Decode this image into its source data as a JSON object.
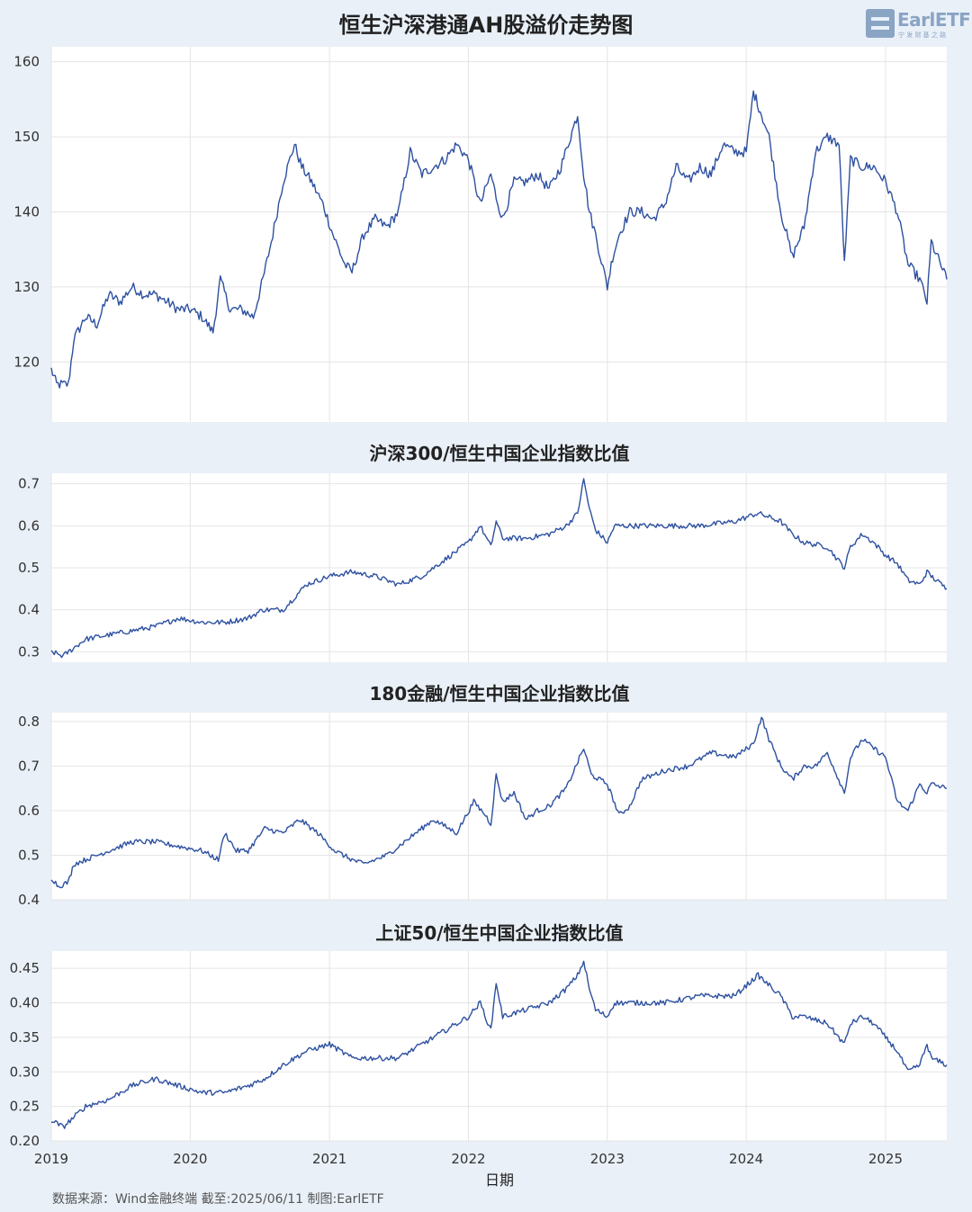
{
  "title": "恒生沪深港通AH股溢价走势图",
  "logo": {
    "text": "EarlETF",
    "sub": "宁 发 财 基 之 路"
  },
  "xlabel": "日期",
  "source": "数据来源：Wind金融终端 截至:2025/06/11 制图:EarlETF",
  "x_ticks": [
    "2019",
    "2020",
    "2021",
    "2022",
    "2023",
    "2024",
    "2025"
  ],
  "colors": {
    "line": "#2d50a0",
    "plot_bg": "#ffffff",
    "page_bg": "#e9f0f8",
    "grid": "#e4e4e4"
  },
  "chart_data": [
    {
      "type": "line",
      "title": "恒生沪深港通AH股溢价走势图",
      "xlabel": "",
      "ylabel": "",
      "ylim": [
        112,
        162
      ],
      "yticks": [
        "120",
        "130",
        "140",
        "150",
        "160"
      ],
      "ytick_values": [
        120,
        130,
        140,
        150,
        160
      ],
      "x": [
        "2019-01-01",
        "2019-01-15",
        "2019-02-15",
        "2019-03-01",
        "2019-04-01",
        "2019-05-01",
        "2019-06-01",
        "2019-07-01",
        "2019-08-01",
        "2019-09-01",
        "2019-10-01",
        "2019-11-01",
        "2019-12-01",
        "2020-01-01",
        "2020-02-01",
        "2020-03-01",
        "2020-03-20",
        "2020-04-15",
        "2020-05-15",
        "2020-06-15",
        "2020-07-10",
        "2020-08-01",
        "2020-09-01",
        "2020-10-01",
        "2020-10-20",
        "2020-11-15",
        "2020-12-15",
        "2021-01-10",
        "2021-02-10",
        "2021-03-01",
        "2021-04-01",
        "2021-05-01",
        "2021-06-01",
        "2021-07-01",
        "2021-08-01",
        "2021-09-01",
        "2021-10-01",
        "2021-11-01",
        "2021-12-01",
        "2022-01-01",
        "2022-02-01",
        "2022-03-01",
        "2022-03-15",
        "2022-04-01",
        "2022-05-01",
        "2022-06-01",
        "2022-07-01",
        "2022-08-01",
        "2022-09-01",
        "2022-10-15",
        "2022-10-31",
        "2022-11-15",
        "2022-12-01",
        "2023-01-01",
        "2023-01-15",
        "2023-02-01",
        "2023-03-01",
        "2023-04-01",
        "2023-05-01",
        "2023-06-01",
        "2023-07-01",
        "2023-08-01",
        "2023-09-01",
        "2023-10-01",
        "2023-11-01",
        "2023-12-01",
        "2024-01-01",
        "2024-01-20",
        "2024-02-10",
        "2024-03-01",
        "2024-04-01",
        "2024-05-01",
        "2024-06-01",
        "2024-07-01",
        "2024-08-01",
        "2024-09-01",
        "2024-09-15",
        "2024-10-01",
        "2024-11-01",
        "2024-12-01",
        "2025-01-01",
        "2025-02-01",
        "2025-03-01",
        "2025-04-01",
        "2025-04-20",
        "2025-05-01",
        "2025-06-11"
      ],
      "values": [
        119,
        117,
        117,
        123,
        126,
        125,
        129,
        128,
        130,
        129,
        129,
        128,
        127,
        127,
        126,
        124,
        131,
        127,
        127,
        126,
        131,
        136,
        144,
        149,
        146,
        144,
        141,
        137,
        133,
        132,
        137,
        139,
        138,
        140,
        148,
        145,
        146,
        147,
        149,
        147,
        141,
        145,
        142,
        139,
        144,
        144,
        145,
        143,
        146,
        153,
        145,
        140,
        137,
        130,
        134,
        137,
        140,
        140,
        139,
        141,
        146,
        144,
        146,
        145,
        149,
        148,
        148,
        156,
        153,
        150,
        140,
        134,
        138,
        148,
        150,
        149,
        133,
        147,
        146,
        146,
        144,
        140,
        133,
        131,
        128,
        136,
        131
      ]
    },
    {
      "type": "line",
      "title": "沪深300/恒生中国企业指数比值",
      "xlabel": "",
      "ylabel": "",
      "ylim": [
        0.275,
        0.725
      ],
      "yticks": [
        "0.3",
        "0.4",
        "0.5",
        "0.6",
        "0.7"
      ],
      "ytick_values": [
        0.3,
        0.4,
        0.5,
        0.6,
        0.7
      ],
      "x": [
        "2019-01-01",
        "2019-02-01",
        "2019-04-01",
        "2019-06-01",
        "2019-08-01",
        "2019-10-01",
        "2019-12-01",
        "2020-02-01",
        "2020-04-01",
        "2020-06-01",
        "2020-07-10",
        "2020-09-01",
        "2020-11-01",
        "2021-01-01",
        "2021-03-01",
        "2021-05-01",
        "2021-07-01",
        "2021-09-01",
        "2021-11-01",
        "2022-01-01",
        "2022-02-01",
        "2022-03-01",
        "2022-03-15",
        "2022-04-01",
        "2022-06-01",
        "2022-08-01",
        "2022-09-15",
        "2022-10-15",
        "2022-10-31",
        "2022-11-15",
        "2022-12-01",
        "2023-01-01",
        "2023-01-20",
        "2023-03-01",
        "2023-06-01",
        "2023-09-01",
        "2023-12-01",
        "2024-02-01",
        "2024-04-01",
        "2024-05-01",
        "2024-06-01",
        "2024-08-01",
        "2024-09-15",
        "2024-10-01",
        "2024-11-01",
        "2024-12-01",
        "2025-01-01",
        "2025-02-01",
        "2025-03-01",
        "2025-04-01",
        "2025-04-20",
        "2025-05-01",
        "2025-06-11"
      ],
      "values": [
        0.3,
        0.29,
        0.33,
        0.34,
        0.35,
        0.36,
        0.38,
        0.37,
        0.37,
        0.38,
        0.4,
        0.4,
        0.46,
        0.48,
        0.49,
        0.48,
        0.46,
        0.48,
        0.52,
        0.56,
        0.6,
        0.55,
        0.61,
        0.57,
        0.57,
        0.58,
        0.6,
        0.63,
        0.71,
        0.64,
        0.59,
        0.56,
        0.6,
        0.6,
        0.6,
        0.6,
        0.61,
        0.63,
        0.61,
        0.58,
        0.56,
        0.55,
        0.5,
        0.55,
        0.58,
        0.56,
        0.53,
        0.51,
        0.47,
        0.46,
        0.49,
        0.48,
        0.45
      ]
    },
    {
      "type": "line",
      "title": "180金融/恒生中国企业指数比值",
      "xlabel": "",
      "ylabel": "",
      "ylim": [
        0.4,
        0.82
      ],
      "yticks": [
        "0.4",
        "0.5",
        "0.6",
        "0.7",
        "0.8"
      ],
      "ytick_values": [
        0.4,
        0.5,
        0.6,
        0.7,
        0.8
      ],
      "x": [
        "2019-01-01",
        "2019-01-20",
        "2019-02-15",
        "2019-03-01",
        "2019-04-01",
        "2019-06-01",
        "2019-08-01",
        "2019-10-01",
        "2019-12-01",
        "2020-02-01",
        "2020-03-15",
        "2020-04-01",
        "2020-05-01",
        "2020-06-01",
        "2020-07-15",
        "2020-09-01",
        "2020-10-15",
        "2020-12-01",
        "2021-01-15",
        "2021-03-01",
        "2021-04-01",
        "2021-06-01",
        "2021-08-01",
        "2021-10-01",
        "2021-12-01",
        "2022-01-15",
        "2022-02-15",
        "2022-03-01",
        "2022-03-15",
        "2022-04-01",
        "2022-05-01",
        "2022-06-01",
        "2022-07-01",
        "2022-08-01",
        "2022-09-15",
        "2022-10-31",
        "2022-11-20",
        "2023-01-01",
        "2023-02-01",
        "2023-03-01",
        "2023-04-01",
        "2023-06-01",
        "2023-08-01",
        "2023-10-01",
        "2023-12-01",
        "2024-01-20",
        "2024-02-10",
        "2024-03-01",
        "2024-04-01",
        "2024-05-01",
        "2024-06-01",
        "2024-07-01",
        "2024-08-01",
        "2024-09-15",
        "2024-10-01",
        "2024-11-01",
        "2024-12-01",
        "2025-01-01",
        "2025-02-01",
        "2025-03-01",
        "2025-04-01",
        "2025-04-20",
        "2025-05-01",
        "2025-06-11"
      ],
      "values": [
        0.45,
        0.43,
        0.44,
        0.48,
        0.49,
        0.51,
        0.53,
        0.53,
        0.52,
        0.51,
        0.49,
        0.55,
        0.51,
        0.51,
        0.56,
        0.55,
        0.58,
        0.55,
        0.51,
        0.49,
        0.48,
        0.5,
        0.54,
        0.58,
        0.55,
        0.62,
        0.59,
        0.57,
        0.68,
        0.62,
        0.64,
        0.58,
        0.6,
        0.61,
        0.65,
        0.74,
        0.68,
        0.66,
        0.59,
        0.61,
        0.67,
        0.69,
        0.7,
        0.73,
        0.72,
        0.75,
        0.81,
        0.76,
        0.7,
        0.67,
        0.7,
        0.7,
        0.73,
        0.64,
        0.72,
        0.76,
        0.74,
        0.72,
        0.62,
        0.6,
        0.66,
        0.64,
        0.66,
        0.65
      ]
    },
    {
      "type": "line",
      "title": "上证50/恒生中国企业指数比值",
      "xlabel": "日期",
      "ylabel": "",
      "ylim": [
        0.2,
        0.475
      ],
      "yticks": [
        "0.20",
        "0.25",
        "0.30",
        "0.35",
        "0.40",
        "0.45"
      ],
      "ytick_values": [
        0.2,
        0.25,
        0.3,
        0.35,
        0.4,
        0.45
      ],
      "x": [
        "2019-01-01",
        "2019-02-01",
        "2019-04-01",
        "2019-06-01",
        "2019-08-01",
        "2019-10-01",
        "2019-12-01",
        "2020-02-01",
        "2020-04-01",
        "2020-06-01",
        "2020-07-15",
        "2020-09-01",
        "2020-11-01",
        "2021-01-01",
        "2021-03-01",
        "2021-05-01",
        "2021-07-01",
        "2021-09-01",
        "2021-11-01",
        "2022-01-01",
        "2022-02-01",
        "2022-03-01",
        "2022-03-15",
        "2022-04-01",
        "2022-06-01",
        "2022-08-01",
        "2022-09-15",
        "2022-10-15",
        "2022-10-31",
        "2022-11-15",
        "2022-12-01",
        "2023-01-01",
        "2023-01-20",
        "2023-03-01",
        "2023-06-01",
        "2023-09-01",
        "2023-12-01",
        "2024-02-01",
        "2024-04-01",
        "2024-05-01",
        "2024-06-01",
        "2024-08-01",
        "2024-09-15",
        "2024-10-01",
        "2024-11-01",
        "2024-12-01",
        "2025-01-01",
        "2025-02-01",
        "2025-03-01",
        "2025-04-01",
        "2025-04-20",
        "2025-05-01",
        "2025-06-11"
      ],
      "values": [
        0.23,
        0.22,
        0.25,
        0.26,
        0.28,
        0.29,
        0.28,
        0.27,
        0.27,
        0.28,
        0.29,
        0.31,
        0.33,
        0.34,
        0.32,
        0.32,
        0.32,
        0.34,
        0.36,
        0.38,
        0.4,
        0.36,
        0.43,
        0.38,
        0.39,
        0.4,
        0.42,
        0.44,
        0.46,
        0.42,
        0.39,
        0.38,
        0.4,
        0.4,
        0.4,
        0.41,
        0.41,
        0.44,
        0.41,
        0.38,
        0.38,
        0.37,
        0.34,
        0.37,
        0.38,
        0.37,
        0.35,
        0.33,
        0.3,
        0.31,
        0.34,
        0.32,
        0.31
      ]
    }
  ]
}
